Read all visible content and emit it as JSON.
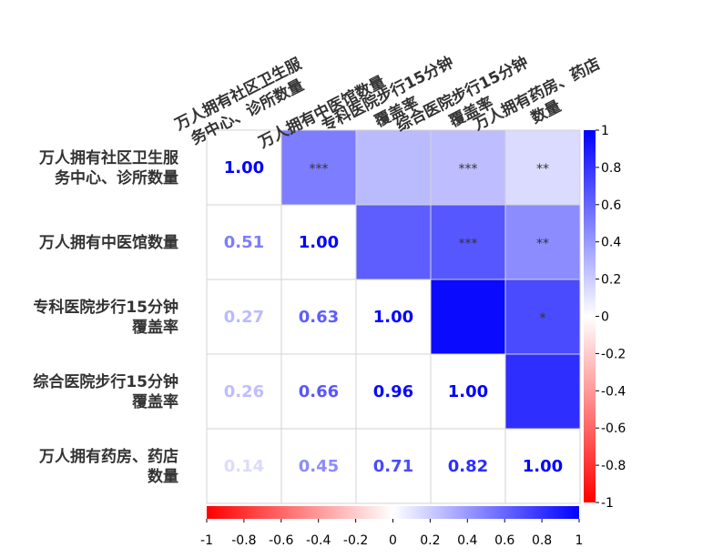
{
  "chart_data": {
    "type": "heatmap",
    "variables": [
      [
        "万人拥有社区卫生服",
        "务中心、诊所数量"
      ],
      [
        "万人拥有中医馆数量"
      ],
      [
        "专科医院步行15分钟",
        "覆盖率"
      ],
      [
        "综合医院步行15分钟",
        "覆盖率"
      ],
      [
        "万人拥有药房、药店",
        "数量"
      ]
    ],
    "correlation": [
      [
        1.0,
        0.51,
        0.27,
        0.26,
        0.14
      ],
      [
        0.51,
        1.0,
        0.63,
        0.66,
        0.45
      ],
      [
        0.27,
        0.63,
        1.0,
        0.96,
        0.71
      ],
      [
        0.26,
        0.66,
        0.96,
        1.0,
        0.82
      ],
      [
        0.14,
        0.45,
        0.71,
        0.82,
        1.0
      ]
    ],
    "lower_labels": [
      [
        "1.00",
        null,
        null,
        null,
        null
      ],
      [
        "0.51",
        "1.00",
        null,
        null,
        null
      ],
      [
        "0.27",
        "0.63",
        "1.00",
        null,
        null
      ],
      [
        "0.26",
        "0.66",
        "0.96",
        "1.00",
        null
      ],
      [
        "0.14",
        "0.45",
        "0.71",
        "0.82",
        "1.00"
      ]
    ],
    "upper_significance": [
      [
        null,
        "***",
        "",
        "***",
        "**"
      ],
      [
        null,
        null,
        "",
        "***",
        "**"
      ],
      [
        null,
        null,
        null,
        "",
        "*"
      ],
      [
        null,
        null,
        null,
        null,
        ""
      ],
      [
        null,
        null,
        null,
        null,
        null
      ]
    ],
    "color_scale": {
      "min": -1,
      "max": 1,
      "low": "#ff0000",
      "mid": "#ffffff",
      "high": "#0000ff"
    },
    "colorbar_ticks": [
      "-1",
      "-0.8",
      "-0.6",
      "-0.4",
      "-0.2",
      "0",
      "0.2",
      "0.4",
      "0.6",
      "0.8",
      "1"
    ],
    "grid": true
  }
}
